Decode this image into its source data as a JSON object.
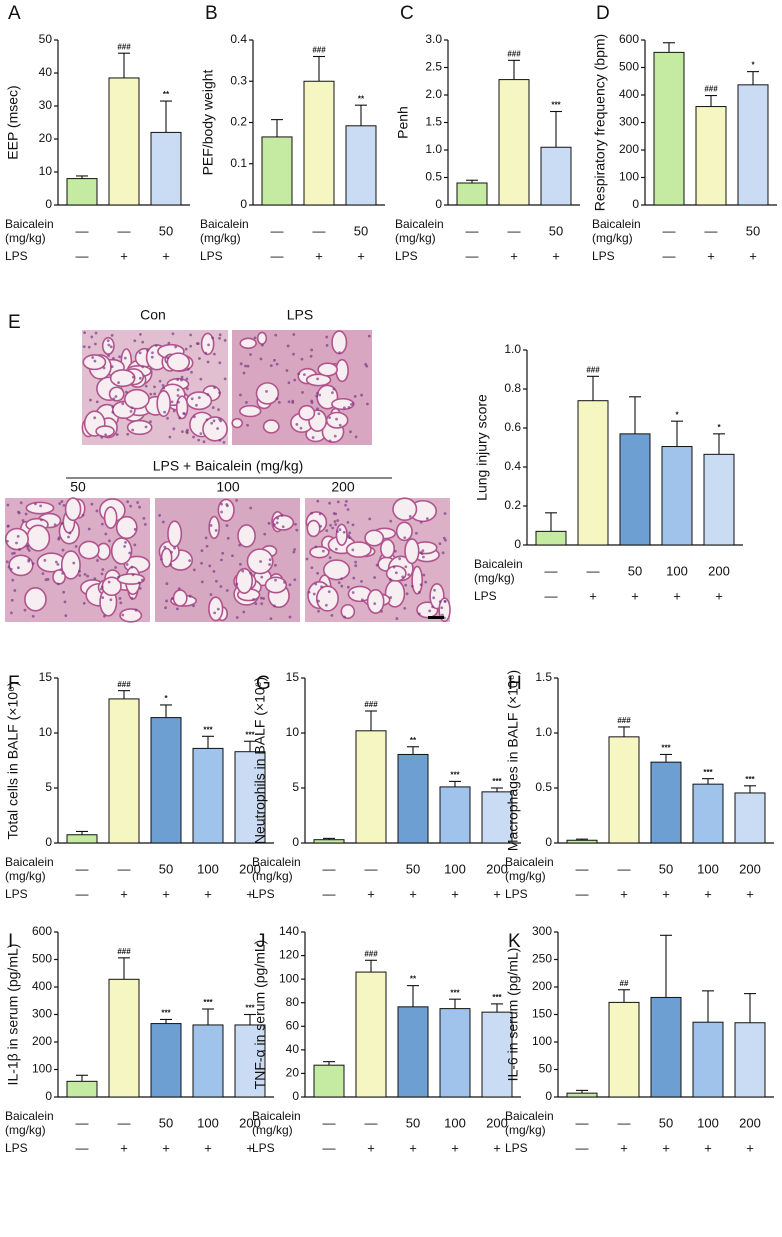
{
  "chart_data": [
    {
      "type": "bar",
      "panel_label": "A",
      "ylabel": "EEP (msec)",
      "ylim": [
        0,
        50
      ],
      "yticks": [
        0,
        10,
        20,
        30,
        40,
        50
      ],
      "values": [
        8,
        38.5,
        22
      ],
      "errors": [
        0.8,
        7.5,
        9.5
      ],
      "annotations": [
        null,
        "###",
        "**"
      ],
      "colors": [
        "#c5eba3",
        "#f6f6c2",
        "#cadcf3"
      ],
      "rows": [
        {
          "label": [
            "Baicalein",
            "(mg/kg)"
          ],
          "cells": [
            "—",
            "—",
            "50"
          ]
        },
        {
          "label": [
            "LPS"
          ],
          "cells": [
            "—",
            "+",
            "+"
          ]
        }
      ]
    },
    {
      "type": "bar",
      "panel_label": "B",
      "ylabel": "PEF/body weight",
      "ylim": [
        0,
        0.4
      ],
      "yticks": [
        0,
        0.1,
        0.2,
        0.3,
        0.4
      ],
      "values": [
        0.165,
        0.3,
        0.192
      ],
      "errors": [
        0.042,
        0.06,
        0.05
      ],
      "annotations": [
        null,
        "###",
        "**"
      ],
      "colors": [
        "#c5eba3",
        "#f6f6c2",
        "#cadcf3"
      ],
      "rows": [
        {
          "label": [
            "Baicalein",
            "(mg/kg)"
          ],
          "cells": [
            "—",
            "—",
            "50"
          ]
        },
        {
          "label": [
            "LPS"
          ],
          "cells": [
            "—",
            "+",
            "+"
          ]
        }
      ]
    },
    {
      "type": "bar",
      "panel_label": "C",
      "ylabel": "Penh",
      "ylim": [
        0,
        3
      ],
      "yticks": [
        0,
        0.5,
        {
          "value": 1,
          "label": "1.0"
        },
        1.5,
        {
          "value": 2,
          "label": "2.0"
        },
        2.5,
        {
          "value": 3,
          "label": "3.0"
        }
      ],
      "values": [
        0.4,
        2.28,
        1.05
      ],
      "errors": [
        0.05,
        0.35,
        0.65
      ],
      "annotations": [
        null,
        "###",
        "***"
      ],
      "colors": [
        "#c5eba3",
        "#f6f6c2",
        "#cadcf3"
      ],
      "rows": [
        {
          "label": [
            "Baicalein",
            "(mg/kg)"
          ],
          "cells": [
            "—",
            "—",
            "50"
          ]
        },
        {
          "label": [
            "LPS"
          ],
          "cells": [
            "—",
            "+",
            "+"
          ]
        }
      ]
    },
    {
      "type": "bar",
      "panel_label": "D",
      "ylabel": "Respiratory frequency (bpm)",
      "ylim": [
        0,
        600
      ],
      "yticks": [
        0,
        100,
        200,
        300,
        400,
        500,
        600
      ],
      "values": [
        555,
        358,
        437
      ],
      "errors": [
        35,
        40,
        48
      ],
      "annotations": [
        null,
        "###",
        "*"
      ],
      "colors": [
        "#c5eba3",
        "#f6f6c2",
        "#cadcf3"
      ],
      "rows": [
        {
          "label": [
            "Baicalein",
            "(mg/kg)"
          ],
          "cells": [
            "—",
            "—",
            "50"
          ]
        },
        {
          "label": [
            "LPS"
          ],
          "cells": [
            "—",
            "+",
            "+"
          ]
        }
      ]
    },
    {
      "type": "bar",
      "panel_label": "E",
      "ylabel": "Lung injury score",
      "ylim": [
        0,
        1
      ],
      "yticks": [
        0,
        0.2,
        0.4,
        0.6,
        0.8,
        {
          "value": 1,
          "label": "1.0"
        }
      ],
      "values": [
        0.07,
        0.74,
        0.57,
        0.505,
        0.465
      ],
      "errors": [
        0.095,
        0.125,
        0.19,
        0.13,
        0.105
      ],
      "annotations": [
        null,
        "###",
        null,
        "*",
        "*"
      ],
      "colors": [
        "#c5eba3",
        "#f6f6c2",
        "#6e9fd3",
        "#9fc3ea",
        "#cadcf3"
      ],
      "rows": [
        {
          "label": [
            "Baicalein",
            "(mg/kg)"
          ],
          "cells": [
            "—",
            "—",
            "50",
            "100",
            "200"
          ]
        },
        {
          "label": [
            "LPS"
          ],
          "cells": [
            "—",
            "+",
            "+",
            "+",
            "+"
          ]
        }
      ]
    },
    {
      "type": "bar",
      "panel_label": "F",
      "ylabel": "Total cells in BALF (×10⁶)",
      "ylim": [
        0,
        15
      ],
      "yticks": [
        0,
        5,
        10,
        15
      ],
      "values": [
        0.75,
        13.1,
        11.4,
        8.6,
        8.3
      ],
      "errors": [
        0.3,
        0.75,
        1.15,
        1.1,
        0.95
      ],
      "annotations": [
        null,
        "###",
        "*",
        "***",
        "***"
      ],
      "colors": [
        "#c5eba3",
        "#f6f6c2",
        "#6e9fd3",
        "#9fc3ea",
        "#cadcf3"
      ],
      "rows": [
        {
          "label": [
            "Baicalein",
            "(mg/kg)"
          ],
          "cells": [
            "—",
            "—",
            "50",
            "100",
            "200"
          ]
        },
        {
          "label": [
            "LPS"
          ],
          "cells": [
            "—",
            "+",
            "+",
            "+",
            "+"
          ]
        }
      ]
    },
    {
      "type": "bar",
      "panel_label": "G",
      "ylabel": "Neutrophils in BALF (×10⁶)",
      "ylim": [
        0,
        15
      ],
      "yticks": [
        0,
        5,
        10,
        15
      ],
      "values": [
        0.3,
        10.2,
        8.05,
        5.1,
        4.65
      ],
      "errors": [
        0.12,
        1.8,
        0.7,
        0.5,
        0.35
      ],
      "annotations": [
        null,
        "###",
        "**",
        "***",
        "***"
      ],
      "colors": [
        "#c5eba3",
        "#f6f6c2",
        "#6e9fd3",
        "#9fc3ea",
        "#cadcf3"
      ],
      "rows": [
        {
          "label": [
            "Baicalein",
            "(mg/kg)"
          ],
          "cells": [
            "—",
            "—",
            "50",
            "100",
            "200"
          ]
        },
        {
          "label": [
            "LPS"
          ],
          "cells": [
            "—",
            "+",
            "+",
            "+",
            "+"
          ]
        }
      ]
    },
    {
      "type": "bar",
      "panel_label": "H",
      "ylabel": "Macrophages in BALF (×10⁶)",
      "ylim": [
        0,
        1.5
      ],
      "yticks": [
        0,
        0.5,
        {
          "value": 1,
          "label": "1.0"
        },
        1.5
      ],
      "values": [
        0.025,
        0.965,
        0.735,
        0.535,
        0.455
      ],
      "errors": [
        0.01,
        0.09,
        0.07,
        0.05,
        0.065
      ],
      "annotations": [
        null,
        "###",
        "***",
        "***",
        "***"
      ],
      "colors": [
        "#c5eba3",
        "#f6f6c2",
        "#6e9fd3",
        "#9fc3ea",
        "#cadcf3"
      ],
      "rows": [
        {
          "label": [
            "Baicalein",
            "(mg/kg)"
          ],
          "cells": [
            "—",
            "—",
            "50",
            "100",
            "200"
          ]
        },
        {
          "label": [
            "LPS"
          ],
          "cells": [
            "—",
            "+",
            "+",
            "+",
            "+"
          ]
        }
      ]
    },
    {
      "type": "bar",
      "panel_label": "I",
      "ylabel": "IL-1β in serum (pg/mL)",
      "ylim": [
        0,
        600
      ],
      "yticks": [
        0,
        100,
        200,
        300,
        400,
        500,
        600
      ],
      "values": [
        57,
        428,
        267,
        262,
        262
      ],
      "errors": [
        22,
        78,
        15,
        58,
        38
      ],
      "annotations": [
        null,
        "###",
        "***",
        "***",
        "***"
      ],
      "colors": [
        "#c5eba3",
        "#f6f6c2",
        "#6e9fd3",
        "#9fc3ea",
        "#cadcf3"
      ],
      "rows": [
        {
          "label": [
            "Baicalein",
            "(mg/kg)"
          ],
          "cells": [
            "—",
            "—",
            "50",
            "100",
            "200"
          ]
        },
        {
          "label": [
            "LPS"
          ],
          "cells": [
            "—",
            "+",
            "+",
            "+",
            "+"
          ]
        }
      ]
    },
    {
      "type": "bar",
      "panel_label": "J",
      "ylabel": "TNF-α in serum (pg/mL)",
      "ylim": [
        0,
        140
      ],
      "yticks": [
        0,
        20,
        40,
        60,
        80,
        100,
        120,
        140
      ],
      "values": [
        27,
        106,
        76.5,
        75,
        72
      ],
      "errors": [
        3,
        10,
        18,
        8,
        7
      ],
      "annotations": [
        null,
        "###",
        "**",
        "***",
        "***"
      ],
      "colors": [
        "#c5eba3",
        "#f6f6c2",
        "#6e9fd3",
        "#9fc3ea",
        "#cadcf3"
      ],
      "rows": [
        {
          "label": [
            "Baicalein",
            "(mg/kg)"
          ],
          "cells": [
            "—",
            "—",
            "50",
            "100",
            "200"
          ]
        },
        {
          "label": [
            "LPS"
          ],
          "cells": [
            "—",
            "+",
            "+",
            "+",
            "+"
          ]
        }
      ]
    },
    {
      "type": "bar",
      "panel_label": "K",
      "ylabel": "IL-6 in serum (pg/mL)",
      "ylim": [
        0,
        300
      ],
      "yticks": [
        0,
        50,
        100,
        150,
        200,
        250,
        300
      ],
      "values": [
        7,
        172,
        181,
        136,
        135
      ],
      "errors": [
        5,
        23,
        113,
        57,
        53
      ],
      "annotations": [
        null,
        "##",
        null,
        null,
        null
      ],
      "colors": [
        "#c5eba3",
        "#f6f6c2",
        "#6e9fd3",
        "#9fc3ea",
        "#cadcf3"
      ],
      "rows": [
        {
          "label": [
            "Baicalein",
            "(mg/kg)"
          ],
          "cells": [
            "—",
            "—",
            "50",
            "100",
            "200"
          ]
        },
        {
          "label": [
            "LPS"
          ],
          "cells": [
            "—",
            "+",
            "+",
            "+",
            "+"
          ]
        }
      ]
    }
  ],
  "histology": {
    "con": "Con",
    "lps": "LPS",
    "group": "LPS + Baicalein (mg/kg)",
    "doses": [
      "50",
      "100",
      "200"
    ]
  }
}
